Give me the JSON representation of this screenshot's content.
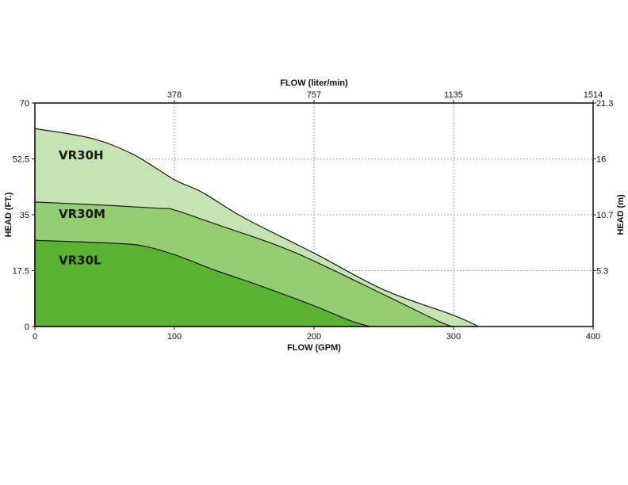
{
  "chart_data": {
    "type": "area",
    "xlabel": "FLOW (GPM)",
    "ylabel": "HEAD (FT.)",
    "xlim": [
      0,
      400
    ],
    "ylim": [
      0,
      70
    ],
    "x_ticks": [
      "0",
      "100",
      "200",
      "300",
      "400"
    ],
    "y_ticks": [
      "0",
      "17.5",
      "35",
      "52.5",
      "70"
    ],
    "x2label": "FLOW (liter/min)",
    "x2_ticks": [
      "378",
      "757",
      "1135",
      "1514"
    ],
    "y2label": "HEAD (m)",
    "y2_ticks": [
      "5.3",
      "10.7",
      "16",
      "21.3"
    ],
    "grid": true,
    "series": [
      {
        "name": "VR30H",
        "color": "#c5e3b3",
        "points": [
          [
            0,
            62
          ],
          [
            40,
            59
          ],
          [
            70,
            54
          ],
          [
            100,
            46
          ],
          [
            120,
            42
          ],
          [
            150,
            34
          ],
          [
            200,
            23
          ],
          [
            250,
            11.5
          ],
          [
            300,
            3.5
          ],
          [
            318,
            0
          ]
        ]
      },
      {
        "name": "VR30M",
        "color": "#94cd72",
        "points": [
          [
            0,
            39
          ],
          [
            50,
            38
          ],
          [
            90,
            37
          ],
          [
            100,
            36.5
          ],
          [
            130,
            32
          ],
          [
            170,
            26
          ],
          [
            200,
            20.5
          ],
          [
            250,
            10
          ],
          [
            290,
            1.5
          ],
          [
            300,
            0
          ]
        ]
      },
      {
        "name": "VR30L",
        "color": "#5ab231",
        "points": [
          [
            0,
            27
          ],
          [
            60,
            26
          ],
          [
            80,
            25
          ],
          [
            100,
            22.5
          ],
          [
            130,
            17.5
          ],
          [
            160,
            13
          ],
          [
            200,
            6.5
          ],
          [
            225,
            2
          ],
          [
            240,
            0
          ]
        ]
      }
    ]
  }
}
